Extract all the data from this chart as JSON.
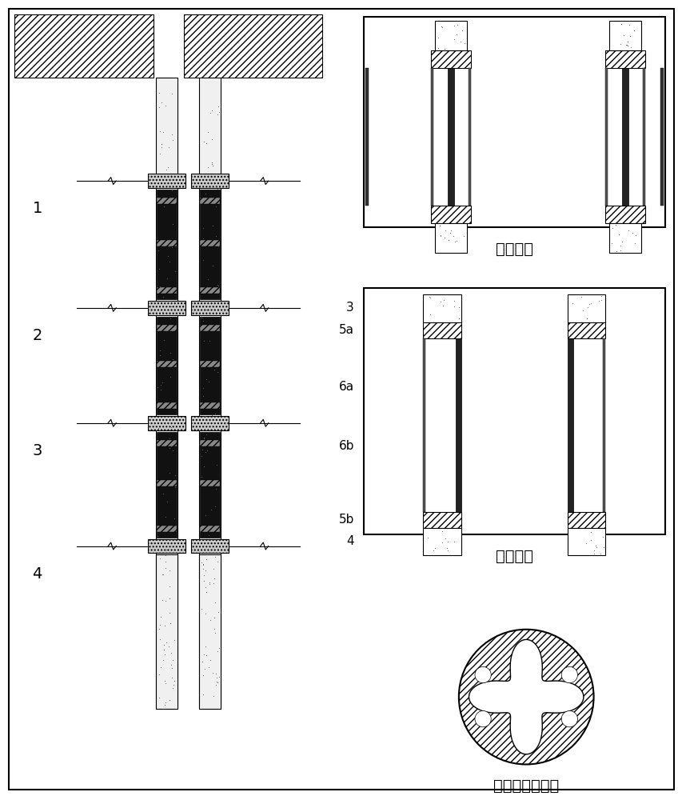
{
  "bg_color": "#ffffff",
  "lc": "#000000",
  "title_closed": "套筒闭合",
  "title_open": "套筒张开",
  "title_cross": "加载钒板尺面图",
  "fig_width": 8.54,
  "fig_height": 10.0,
  "dpi": 100
}
